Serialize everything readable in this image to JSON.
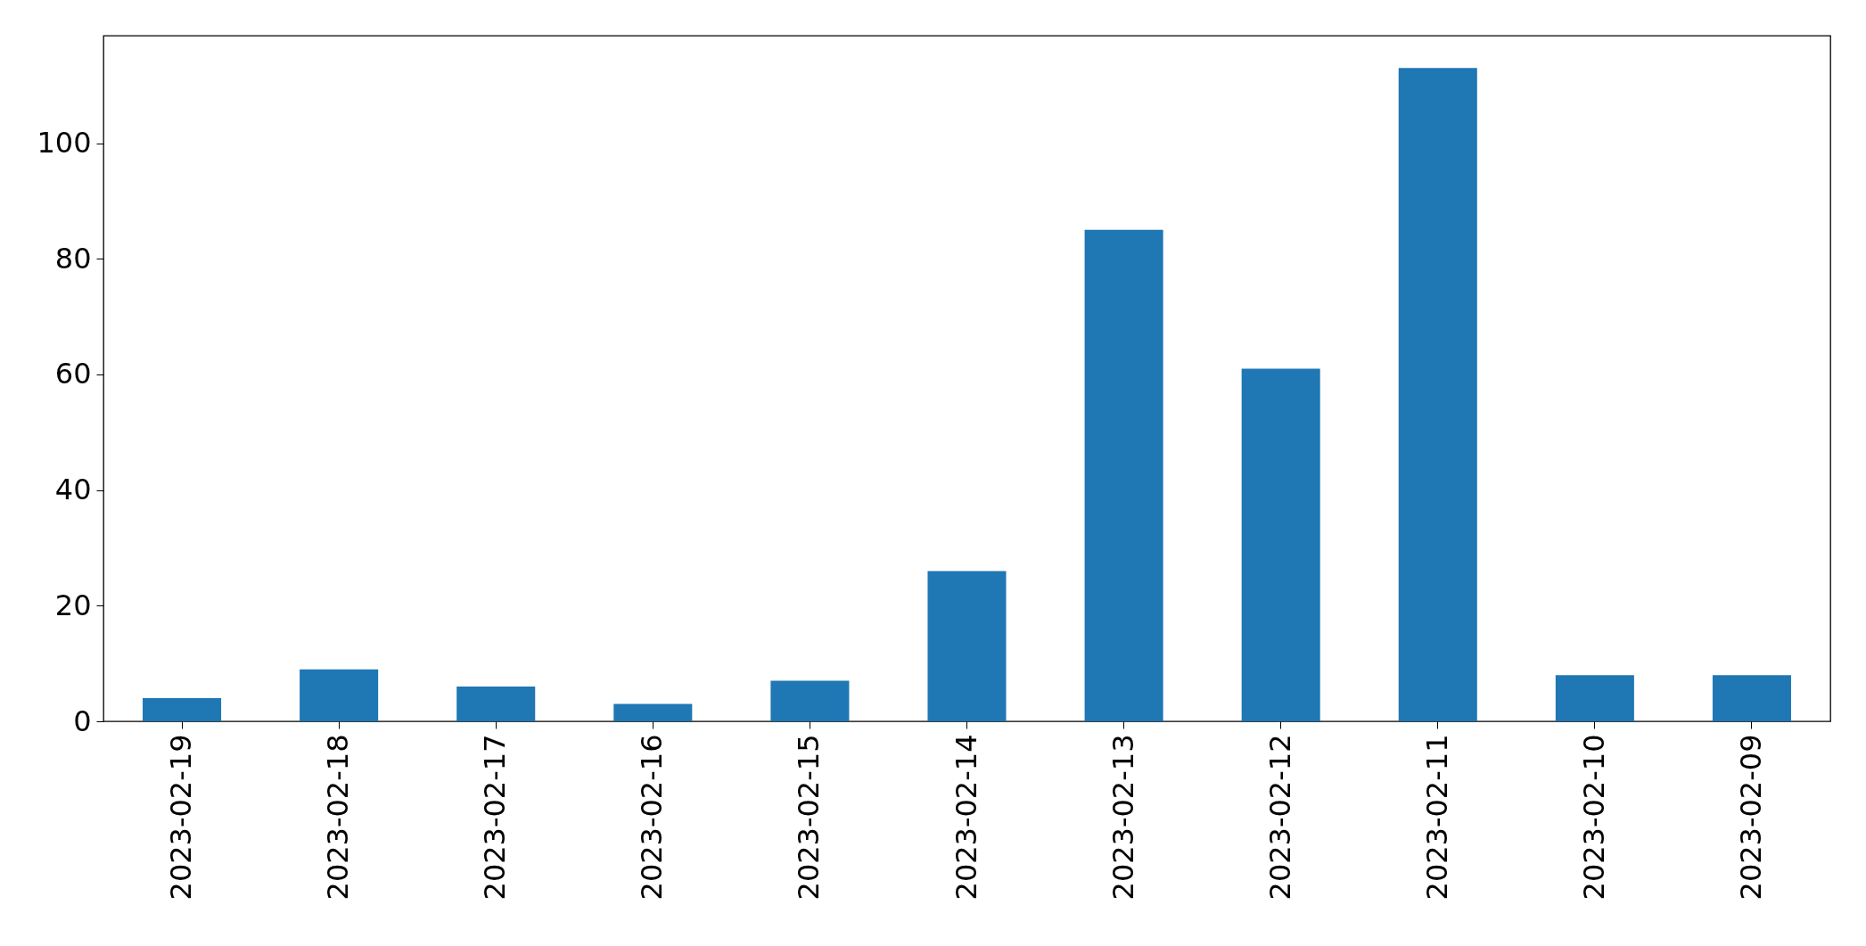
{
  "chart_data": {
    "type": "bar",
    "categories": [
      "2023-02-19",
      "2023-02-18",
      "2023-02-17",
      "2023-02-16",
      "2023-02-15",
      "2023-02-14",
      "2023-02-13",
      "2023-02-12",
      "2023-02-11",
      "2023-02-10",
      "2023-02-09"
    ],
    "values": [
      4,
      9,
      6,
      3,
      7,
      26,
      85,
      61,
      113,
      8,
      8
    ],
    "color": "#1f77b4",
    "ylim": [
      0,
      118.6
    ],
    "yticks": [
      0,
      20,
      40,
      60,
      80,
      100
    ],
    "grid": false
  }
}
